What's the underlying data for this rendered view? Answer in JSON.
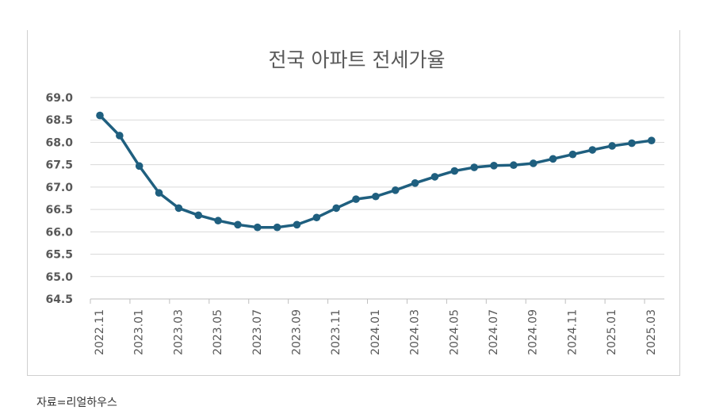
{
  "source": "자료=리얼하우스",
  "colors": {
    "line": "#1f5f7f",
    "grid": "#d9d9d9",
    "axis": "#bfbfbf",
    "tick_text": "#595959",
    "title": "#595959"
  },
  "chart_data": {
    "type": "line",
    "title": "전국 아파트 전세가율",
    "ylim": [
      64.5,
      69.0
    ],
    "y_ticks": [
      "69.0",
      "68.5",
      "68.0",
      "67.5",
      "67.0",
      "66.5",
      "66.0",
      "65.5",
      "65.0",
      "64.5"
    ],
    "x_tick_labels": [
      "2022.11",
      "2023.01",
      "2023.03",
      "2023.05",
      "2023.07",
      "2023.09",
      "2023.11",
      "2024.01",
      "2024.03",
      "2024.05",
      "2024.07",
      "2024.09",
      "2024.11",
      "2025.01",
      "2025.03"
    ],
    "grid": true,
    "series": [
      {
        "x": [
          "2022.11",
          "2022.12",
          "2023.01",
          "2023.02",
          "2023.03",
          "2023.04",
          "2023.05",
          "2023.06",
          "2023.07",
          "2023.08",
          "2023.09",
          "2023.10",
          "2023.11",
          "2023.12",
          "2024.01",
          "2024.02",
          "2024.03",
          "2024.04",
          "2024.05",
          "2024.06",
          "2024.07",
          "2024.08",
          "2024.09",
          "2024.10",
          "2024.11",
          "2024.12",
          "2025.01",
          "2025.02",
          "2025.03"
        ],
        "values": [
          68.6,
          68.15,
          67.47,
          66.87,
          66.53,
          66.37,
          66.25,
          66.16,
          66.1,
          66.1,
          66.16,
          66.32,
          66.53,
          66.73,
          66.79,
          66.93,
          67.09,
          67.23,
          67.36,
          67.44,
          67.48,
          67.49,
          67.53,
          67.63,
          67.73,
          67.83,
          67.92,
          67.98,
          68.04
        ]
      }
    ]
  }
}
